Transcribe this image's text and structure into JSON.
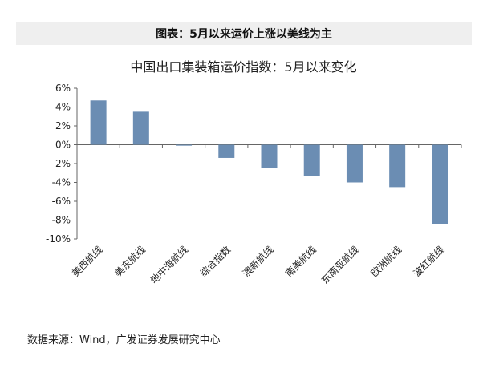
{
  "header": {
    "figure_label": "图表：5月以来运价上涨以美线为主"
  },
  "source": {
    "text": "数据来源：Wind，广发证券发展研究中心"
  },
  "chart_data": {
    "type": "bar",
    "title": "中国出口集装箱运价指数：5月以来变化",
    "xlabel": "",
    "ylabel": "",
    "categories": [
      "美西航线",
      "美东航线",
      "地中海航线",
      "综合指数",
      "澳新航线",
      "南美航线",
      "东南亚航线",
      "欧洲航线",
      "波红航线"
    ],
    "values": [
      4.7,
      3.5,
      -0.1,
      -1.4,
      -2.5,
      -3.3,
      -4.0,
      -4.5,
      -8.4
    ],
    "unit": "%",
    "ylim": [
      -10,
      6
    ],
    "yticks": [
      6,
      4,
      2,
      0,
      -2,
      -4,
      -6,
      -8,
      -10
    ],
    "ytick_labels": [
      "6%",
      "4%",
      "2%",
      "0%",
      "-2%",
      "-4%",
      "-6%",
      "-8%",
      "-10%"
    ],
    "bar_color": "#6b8db3",
    "grid": false,
    "legend": "none"
  }
}
